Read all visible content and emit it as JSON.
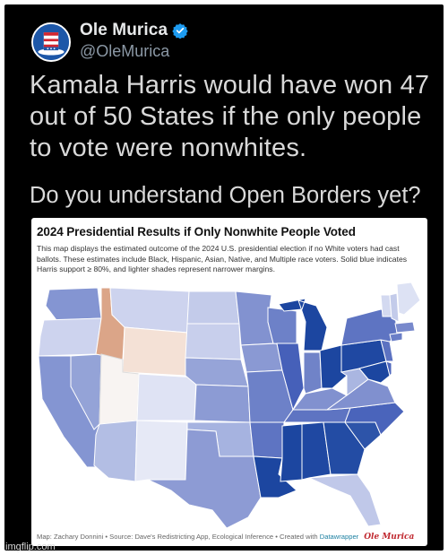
{
  "account": {
    "display_name": "Ole Murica",
    "handle": "@OleMurica",
    "avatar_icon": "uncle-sam-hat-icon",
    "verified_icon": "verified-badge-icon",
    "verified_color": "#1d9bf0"
  },
  "tweet": {
    "text": "Kamala Harris would have won 47 out of 50 States if the only people to vote were nonwhites.",
    "question": "Do you understand Open Borders yet?"
  },
  "chart_card": {
    "title": "2024 Presidential Results if Only Nonwhite People Voted",
    "description": "This map displays the estimated outcome of the 2024 U.S. presidential election if no White voters had cast ballots. These estimates include Black, Hispanic, Asian, Native, and Multiple race voters. Solid blue indicates Harris support ≥ 80%, and lighter shades represent narrower margins.",
    "footer_text": "Map: Zachary Donnini • Source: Dave's Redistricting App, Ecological Inference • Created with ",
    "footer_link": "Datawrapper",
    "footer_brand": "Ole Murica",
    "colors": {
      "harris_strong": "#1c46a0",
      "harris_medium": "#5b72c1",
      "harris_light": "#a6b3e0",
      "harris_faint": "#dde2f4",
      "trump_light": "#f4e1d6",
      "trump_medium": "#dba588"
    }
  },
  "watermark": "imgflip.com"
}
